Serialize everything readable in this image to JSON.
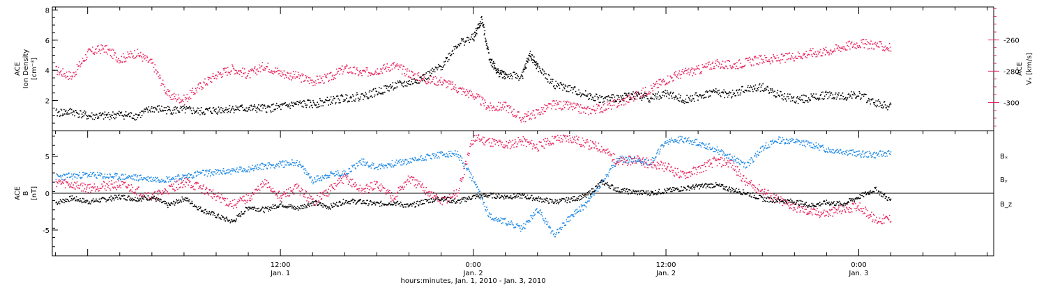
{
  "colors": {
    "black": "#000000",
    "blue": "#1e88e5",
    "red": "#e8245e"
  },
  "panels": [
    {
      "id": "top",
      "left_axis": {
        "label_lines": [
          "ACE",
          "Ion Density",
          "[cm⁻³]"
        ],
        "ticks": [
          2,
          4,
          6,
          8
        ],
        "ylim": [
          0,
          8.2
        ]
      },
      "right_axis": {
        "label_lines": [
          "ACE",
          "Vₓ [km/s]"
        ],
        "ticks": [
          -260,
          -280,
          -300
        ],
        "ylim": [
          -318,
          -239
        ]
      }
    },
    {
      "id": "bottom",
      "left_axis": {
        "label_lines": [
          "ACE",
          "B",
          "[nT]"
        ],
        "ticks": [
          -5,
          0,
          5
        ],
        "ylim": [
          -8.5,
          8.5
        ]
      },
      "legend": [
        "Bₓ",
        "Bᵧ",
        "B_z"
      ]
    }
  ],
  "x_axis": {
    "ticks": [
      {
        "hour": 12,
        "time": "12:00",
        "date": "Jan. 1"
      },
      {
        "hour": 24,
        "time": "0:00",
        "date": "Jan. 2"
      },
      {
        "hour": 36,
        "time": "12:00",
        "date": "Jan. 2"
      },
      {
        "hour": 48,
        "time": "0:00",
        "date": "Jan. 3"
      }
    ],
    "title": "hours:minutes, Jan.  1, 2010 - Jan.  3, 2010",
    "xlim_hours": [
      -2.2,
      56.4
    ]
  },
  "chart_data": [
    {
      "type": "scatter",
      "panel": "top",
      "series": [
        {
          "axis": "left",
          "color": "#000000",
          "points": [
            [
              -2,
              1.2
            ],
            [
              -1,
              1.3
            ],
            [
              0,
              1.0
            ],
            [
              1,
              1.0
            ],
            [
              2,
              1.1
            ],
            [
              3,
              1.0
            ],
            [
              4,
              1.5
            ],
            [
              5,
              1.4
            ],
            [
              6,
              1.4
            ],
            [
              7,
              1.3
            ],
            [
              8,
              1.4
            ],
            [
              9,
              1.5
            ],
            [
              10,
              1.5
            ],
            [
              11,
              1.5
            ],
            [
              12,
              1.6
            ],
            [
              13,
              1.8
            ],
            [
              14,
              1.8
            ],
            [
              15,
              2.0
            ],
            [
              16,
              2.2
            ],
            [
              17,
              2.3
            ],
            [
              18,
              2.6
            ],
            [
              19,
              3.0
            ],
            [
              20,
              3.2
            ],
            [
              21,
              3.6
            ],
            [
              22,
              4.3
            ],
            [
              23,
              5.8
            ],
            [
              24,
              6.2
            ],
            [
              24.5,
              7.4
            ],
            [
              25,
              4.8
            ],
            [
              25.5,
              3.9
            ],
            [
              26,
              3.7
            ],
            [
              27,
              3.6
            ],
            [
              27.5,
              5.1
            ],
            [
              28,
              4.2
            ],
            [
              29,
              3.1
            ],
            [
              30,
              2.8
            ],
            [
              31,
              2.4
            ],
            [
              32,
              2.1
            ],
            [
              33,
              2.2
            ],
            [
              34,
              2.4
            ],
            [
              35,
              2.2
            ],
            [
              36,
              2.5
            ],
            [
              37,
              2.1
            ],
            [
              38,
              2.3
            ],
            [
              39,
              2.6
            ],
            [
              40,
              2.4
            ],
            [
              41,
              2.8
            ],
            [
              42,
              2.9
            ],
            [
              43,
              2.4
            ],
            [
              44,
              2.1
            ],
            [
              45,
              2.2
            ],
            [
              46,
              2.4
            ],
            [
              47,
              2.3
            ],
            [
              48,
              2.4
            ],
            [
              49,
              1.9
            ],
            [
              50,
              1.6
            ]
          ]
        },
        {
          "axis": "right",
          "color": "#e8245e",
          "points": [
            [
              -2,
              -279
            ],
            [
              -1,
              -283
            ],
            [
              0,
              -268
            ],
            [
              1,
              -265
            ],
            [
              2,
              -272
            ],
            [
              3,
              -268
            ],
            [
              4,
              -275
            ],
            [
              5,
              -295
            ],
            [
              6,
              -298
            ],
            [
              7,
              -289
            ],
            [
              8,
              -282
            ],
            [
              9,
              -278
            ],
            [
              10,
              -282
            ],
            [
              11,
              -276
            ],
            [
              12,
              -281
            ],
            [
              13,
              -283
            ],
            [
              14,
              -286
            ],
            [
              15,
              -284
            ],
            [
              16,
              -278
            ],
            [
              17,
              -281
            ],
            [
              18,
              -279
            ],
            [
              19,
              -276
            ],
            [
              20,
              -281
            ],
            [
              21,
              -285
            ],
            [
              22,
              -286
            ],
            [
              23,
              -291
            ],
            [
              24,
              -295
            ],
            [
              25,
              -303
            ],
            [
              26,
              -302
            ],
            [
              27,
              -310
            ],
            [
              28,
              -306
            ],
            [
              29,
              -301
            ],
            [
              30,
              -302
            ],
            [
              31,
              -305
            ],
            [
              32,
              -303
            ],
            [
              33,
              -300
            ],
            [
              34,
              -296
            ],
            [
              35,
              -291
            ],
            [
              36,
              -285
            ],
            [
              37,
              -281
            ],
            [
              38,
              -279
            ],
            [
              39,
              -275
            ],
            [
              40,
              -276
            ],
            [
              41,
              -274
            ],
            [
              42,
              -272
            ],
            [
              43,
              -272
            ],
            [
              44,
              -270
            ],
            [
              45,
              -268
            ],
            [
              46,
              -267
            ],
            [
              47,
              -264
            ],
            [
              48,
              -262
            ],
            [
              49,
              -263
            ],
            [
              50,
              -265
            ]
          ]
        }
      ]
    },
    {
      "type": "scatter",
      "panel": "bottom",
      "series": [
        {
          "name": "Bₓ",
          "color": "#000000",
          "points": [
            [
              -2,
              -1.2
            ],
            [
              -1,
              -0.6
            ],
            [
              0,
              -1.1
            ],
            [
              1,
              -0.8
            ],
            [
              2,
              -0.4
            ],
            [
              3,
              -0.7
            ],
            [
              4,
              -0.5
            ],
            [
              5,
              -1.6
            ],
            [
              6,
              -0.6
            ],
            [
              7,
              -2.1
            ],
            [
              8,
              -3.0
            ],
            [
              9,
              -3.8
            ],
            [
              10,
              -1.8
            ],
            [
              11,
              -2.2
            ],
            [
              12,
              -1.4
            ],
            [
              13,
              -2.0
            ],
            [
              14,
              -1.2
            ],
            [
              15,
              -1.8
            ],
            [
              16,
              -1.0
            ],
            [
              17,
              -1.1
            ],
            [
              18,
              -1.4
            ],
            [
              19,
              -1.2
            ],
            [
              20,
              -1.7
            ],
            [
              21,
              -1.0
            ],
            [
              22,
              -0.6
            ],
            [
              23,
              -1.1
            ],
            [
              24,
              -0.4
            ],
            [
              25,
              -0.2
            ],
            [
              26,
              -0.4
            ],
            [
              27,
              -0.3
            ],
            [
              28,
              -0.7
            ],
            [
              29,
              -1.1
            ],
            [
              30,
              -0.8
            ],
            [
              31,
              -0.3
            ],
            [
              32,
              1.6
            ],
            [
              33,
              0.5
            ],
            [
              34,
              0.2
            ],
            [
              35,
              0.1
            ],
            [
              36,
              0.4
            ],
            [
              37,
              0.7
            ],
            [
              38,
              1.0
            ],
            [
              39,
              1.2
            ],
            [
              40,
              0.6
            ],
            [
              41,
              0.1
            ],
            [
              42,
              -0.7
            ],
            [
              43,
              -0.9
            ],
            [
              44,
              -1.1
            ],
            [
              45,
              -1.6
            ],
            [
              46,
              -1.2
            ],
            [
              47,
              -1.4
            ],
            [
              48,
              -0.4
            ],
            [
              49,
              0.6
            ],
            [
              50,
              -1.0
            ]
          ]
        },
        {
          "name": "Bᵧ",
          "color": "#1e88e5",
          "points": [
            [
              -2,
              2.3
            ],
            [
              -1,
              2.4
            ],
            [
              0,
              2.6
            ],
            [
              1,
              2.4
            ],
            [
              2,
              2.3
            ],
            [
              3,
              2.2
            ],
            [
              4,
              2.0
            ],
            [
              5,
              2.0
            ],
            [
              6,
              2.3
            ],
            [
              7,
              2.8
            ],
            [
              8,
              2.9
            ],
            [
              9,
              3.1
            ],
            [
              10,
              3.4
            ],
            [
              11,
              3.8
            ],
            [
              12,
              4.0
            ],
            [
              13,
              4.3
            ],
            [
              14,
              1.8
            ],
            [
              15,
              2.6
            ],
            [
              16,
              2.8
            ],
            [
              17,
              4.4
            ],
            [
              18,
              3.6
            ],
            [
              19,
              4.1
            ],
            [
              20,
              4.4
            ],
            [
              21,
              5.0
            ],
            [
              22,
              5.3
            ],
            [
              23,
              5.4
            ],
            [
              24,
              1.8
            ],
            [
              25,
              -3.1
            ],
            [
              26,
              -3.8
            ],
            [
              27,
              -4.8
            ],
            [
              28,
              -2.1
            ],
            [
              29,
              -5.6
            ],
            [
              30,
              -3.2
            ],
            [
              31,
              -1.4
            ],
            [
              32,
              1.5
            ],
            [
              33,
              4.7
            ],
            [
              34,
              4.6
            ],
            [
              35,
              4.2
            ],
            [
              36,
              7.1
            ],
            [
              37,
              7.4
            ],
            [
              38,
              6.9
            ],
            [
              39,
              6.1
            ],
            [
              40,
              5.0
            ],
            [
              41,
              3.8
            ],
            [
              42,
              6.3
            ],
            [
              43,
              7.3
            ],
            [
              44,
              7.1
            ],
            [
              45,
              6.7
            ],
            [
              46,
              6.0
            ],
            [
              47,
              5.8
            ],
            [
              48,
              5.4
            ],
            [
              49,
              5.3
            ],
            [
              50,
              5.6
            ]
          ]
        },
        {
          "name": "B_z",
          "color": "#e8245e",
          "points": [
            [
              -2,
              1.6
            ],
            [
              -1,
              1.2
            ],
            [
              0,
              0.8
            ],
            [
              1,
              1.1
            ],
            [
              2,
              1.2
            ],
            [
              3,
              0.5
            ],
            [
              4,
              -0.5
            ],
            [
              5,
              0.6
            ],
            [
              6,
              1.6
            ],
            [
              7,
              0.8
            ],
            [
              8,
              -0.3
            ],
            [
              9,
              -1.5
            ],
            [
              10,
              -0.6
            ],
            [
              11,
              1.4
            ],
            [
              12,
              -0.4
            ],
            [
              13,
              0.8
            ],
            [
              14,
              -1.1
            ],
            [
              15,
              0.4
            ],
            [
              16,
              2.2
            ],
            [
              17,
              0.4
            ],
            [
              18,
              1.2
            ],
            [
              19,
              -0.4
            ],
            [
              20,
              2.0
            ],
            [
              21,
              0.5
            ],
            [
              22,
              -1.1
            ],
            [
              23,
              0.1
            ],
            [
              24,
              7.6
            ],
            [
              25,
              7.1
            ],
            [
              26,
              6.6
            ],
            [
              27,
              7.2
            ],
            [
              28,
              6.4
            ],
            [
              29,
              7.4
            ],
            [
              30,
              7.6
            ],
            [
              31,
              6.8
            ],
            [
              32,
              6.2
            ],
            [
              33,
              4.3
            ],
            [
              34,
              4.6
            ],
            [
              35,
              4.1
            ],
            [
              36,
              3.6
            ],
            [
              37,
              2.5
            ],
            [
              38,
              3.3
            ],
            [
              39,
              4.4
            ],
            [
              40,
              4.2
            ],
            [
              41,
              1.4
            ],
            [
              42,
              0.4
            ],
            [
              43,
              -0.9
            ],
            [
              44,
              -1.8
            ],
            [
              45,
              -2.5
            ],
            [
              46,
              -2.7
            ],
            [
              47,
              -2.1
            ],
            [
              48,
              -1.6
            ],
            [
              49,
              -3.6
            ],
            [
              50,
              -3.4
            ]
          ]
        }
      ]
    }
  ]
}
